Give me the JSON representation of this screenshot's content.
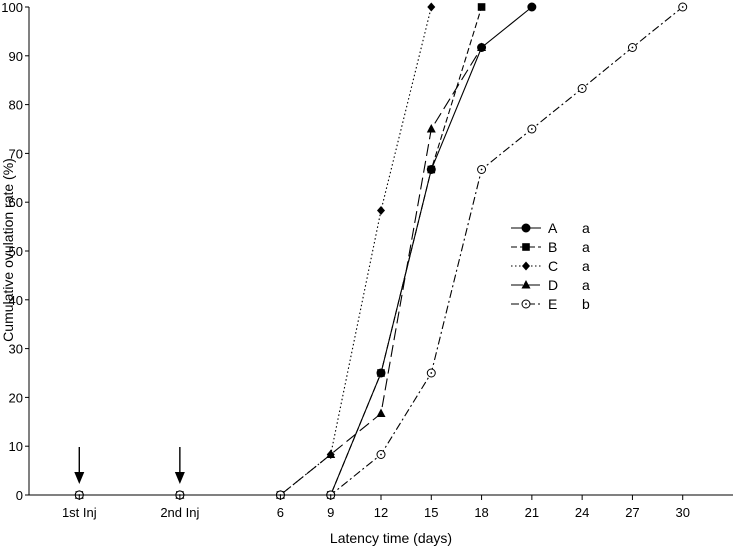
{
  "chart_data": {
    "type": "line",
    "xlabel": "Latency time (days)",
    "ylabel": "Cumulative ovulation rate (%)",
    "ylim": [
      0,
      100
    ],
    "yticks": [
      0,
      10,
      20,
      30,
      40,
      50,
      60,
      70,
      80,
      90,
      100
    ],
    "xlim": [
      -9,
      33
    ],
    "xticks": [
      {
        "value": -6,
        "label": "1st Inj"
      },
      {
        "value": 0,
        "label": "2nd Inj"
      },
      {
        "value": 6,
        "label": "6"
      },
      {
        "value": 9,
        "label": "9"
      },
      {
        "value": 12,
        "label": "12"
      },
      {
        "value": 15,
        "label": "15"
      },
      {
        "value": 18,
        "label": "18"
      },
      {
        "value": 21,
        "label": "21"
      },
      {
        "value": 24,
        "label": "24"
      },
      {
        "value": 27,
        "label": "27"
      },
      {
        "value": 30,
        "label": "30"
      }
    ],
    "annotations": [
      {
        "type": "arrow",
        "x": -6,
        "points_to": "1st Inj"
      },
      {
        "type": "arrow",
        "x": 0,
        "points_to": "2nd Inj"
      }
    ],
    "legend_position": "right-center",
    "grid": false,
    "series": [
      {
        "name": "A",
        "group": "a",
        "marker": "circle-filled",
        "dash": "solid",
        "x": [
          -6,
          0,
          6,
          9,
          12,
          15,
          18,
          21
        ],
        "y": [
          0,
          0,
          0,
          0,
          25,
          66.7,
          91.7,
          100
        ]
      },
      {
        "name": "B",
        "group": "a",
        "marker": "square-filled",
        "dash": "dashed",
        "x": [
          -6,
          0,
          6,
          9,
          12,
          15,
          18
        ],
        "y": [
          0,
          0,
          0,
          0,
          25,
          66.7,
          100
        ]
      },
      {
        "name": "C",
        "group": "a",
        "marker": "diamond-filled",
        "dash": "dotted",
        "x": [
          -6,
          0,
          6,
          9,
          12,
          15
        ],
        "y": [
          0,
          0,
          0,
          8.3,
          58.3,
          100
        ]
      },
      {
        "name": "D",
        "group": "a",
        "marker": "triangle-filled",
        "dash": "long-dash",
        "x": [
          -6,
          0,
          6,
          9,
          12,
          15,
          18
        ],
        "y": [
          0,
          0,
          0,
          8.3,
          16.7,
          75,
          91.7
        ]
      },
      {
        "name": "E",
        "group": "b",
        "marker": "circle-open",
        "dash": "dash-dot",
        "x": [
          -6,
          0,
          6,
          9,
          12,
          15,
          18,
          21,
          24,
          27,
          30
        ],
        "y": [
          0,
          0,
          0,
          0,
          8.3,
          25,
          66.7,
          75,
          83.3,
          91.7,
          100
        ]
      }
    ]
  }
}
